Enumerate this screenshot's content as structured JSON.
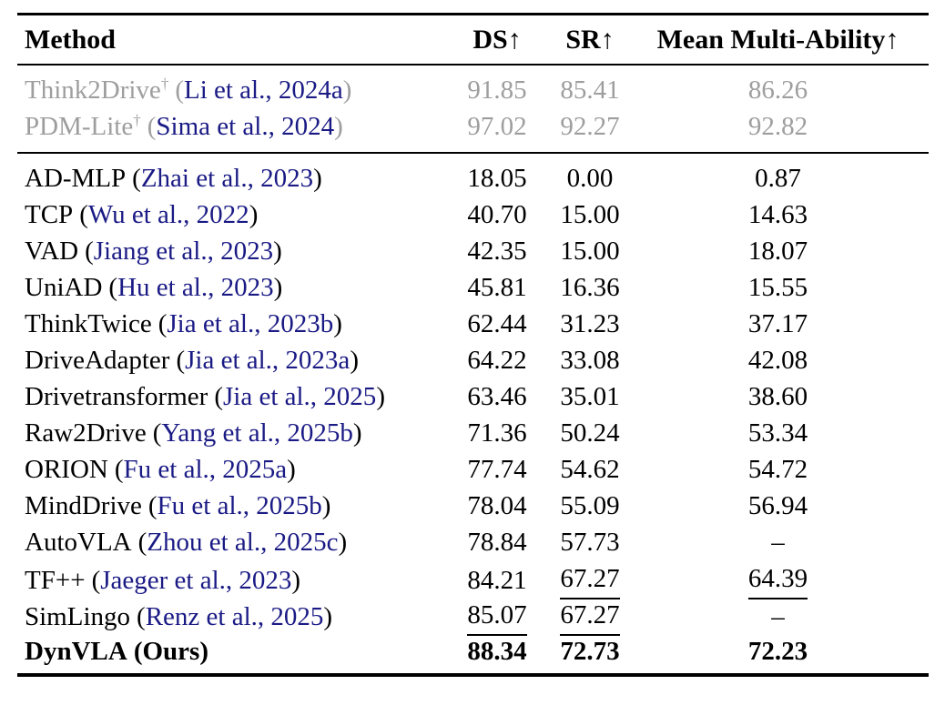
{
  "colors": {
    "link": "#1a1a85",
    "muted": "#9e9e9e",
    "text": "#000000",
    "rule": "#000000",
    "background": "#ffffff"
  },
  "table": {
    "columns": [
      "Method",
      "DS↑",
      "SR↑",
      "Mean Multi-Ability↑"
    ],
    "paren_open": "(",
    "paren_close": ")",
    "missing_value": "–",
    "baseline_rows": [
      {
        "name": "Think2Drive",
        "sup": "†",
        "cite": "Li et al., 2024a",
        "ds": "91.85",
        "sr": "85.41",
        "mma": "86.26",
        "row_style": "muted"
      },
      {
        "name": "PDM-Lite",
        "sup": "†",
        "cite": "Sima et al., 2024",
        "ds": "97.02",
        "sr": "92.27",
        "mma": "92.82",
        "row_style": "muted"
      }
    ],
    "rows": [
      {
        "name": "AD-MLP",
        "cite": "Zhai et al., 2023",
        "ds": "18.05",
        "sr": "0.00",
        "mma": "0.87"
      },
      {
        "name": "TCP",
        "cite": "Wu et al., 2022",
        "ds": "40.70",
        "sr": "15.00",
        "mma": "14.63"
      },
      {
        "name": "VAD",
        "cite": "Jiang et al., 2023",
        "ds": "42.35",
        "sr": "15.00",
        "mma": "18.07"
      },
      {
        "name": "UniAD",
        "cite": "Hu et al., 2023",
        "ds": "45.81",
        "sr": "16.36",
        "mma": "15.55"
      },
      {
        "name": "ThinkTwice",
        "cite": "Jia et al., 2023b",
        "ds": "62.44",
        "sr": "31.23",
        "mma": "37.17"
      },
      {
        "name": "DriveAdapter",
        "cite": "Jia et al., 2023a",
        "ds": "64.22",
        "sr": "33.08",
        "mma": "42.08"
      },
      {
        "name": "Drivetransformer",
        "cite": "Jia et al., 2025",
        "ds": "63.46",
        "sr": "35.01",
        "mma": "38.60"
      },
      {
        "name": "Raw2Drive",
        "cite": "Yang et al., 2025b",
        "ds": "71.36",
        "sr": "50.24",
        "mma": "53.34"
      },
      {
        "name": "ORION",
        "cite": "Fu et al., 2025a",
        "ds": "77.74",
        "sr": "54.62",
        "mma": "54.72"
      },
      {
        "name": "MindDrive",
        "cite": "Fu et al., 2025b",
        "ds": "78.04",
        "sr": "55.09",
        "mma": "56.94"
      },
      {
        "name": "AutoVLA",
        "cite": "Zhou et al., 2025c",
        "ds": "78.84",
        "sr": "57.73",
        "mma": "–"
      },
      {
        "name": "TF++",
        "cite": "Jaeger et al., 2023",
        "ds": "84.21",
        "sr": "67.27",
        "mma": "64.39",
        "underline": [
          "sr",
          "mma"
        ]
      },
      {
        "name": "SimLingo",
        "cite": "Renz et al., 2025",
        "ds": "85.07",
        "sr": "67.27",
        "mma": "–",
        "underline": [
          "ds",
          "sr"
        ]
      },
      {
        "name": "DynVLA",
        "cite": "Ours",
        "cite_plain": true,
        "ds": "88.34",
        "sr": "72.73",
        "mma": "72.23",
        "row_style": "bold"
      }
    ]
  }
}
